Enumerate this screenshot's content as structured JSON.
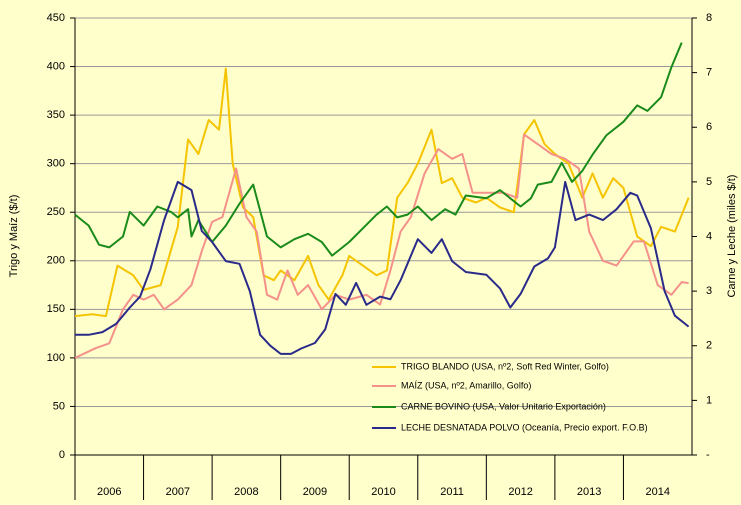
{
  "chart_data": {
    "type": "line",
    "ylabel": "Trigo y Maíz ($/t)",
    "y2label": "Carne y Leche (miles $/t)",
    "xlim": [
      2006,
      2015
    ],
    "xticks": [
      {
        "value": 2006.5,
        "label": "2006"
      },
      {
        "value": 2007.5,
        "label": "2007"
      },
      {
        "value": 2008.5,
        "label": "2008"
      },
      {
        "value": 2009.5,
        "label": "2009"
      },
      {
        "value": 2010.5,
        "label": "2010"
      },
      {
        "value": 2011.5,
        "label": "2011"
      },
      {
        "value": 2012.5,
        "label": "2012"
      },
      {
        "value": 2013.5,
        "label": "2013"
      },
      {
        "value": 2014.5,
        "label": "2014"
      }
    ],
    "ylim": [
      0,
      450
    ],
    "yticks": [
      0,
      50,
      100,
      150,
      200,
      250,
      300,
      350,
      400,
      450
    ],
    "y2lim": [
      0,
      8
    ],
    "y2ticks": [
      {
        "value": 0,
        "label": "-"
      },
      1,
      2,
      3,
      4,
      5,
      6,
      7,
      8
    ],
    "grid": true,
    "legend": "lower right",
    "series": [
      {
        "name": "TRIGO BLANDO (USA, nº2, Soft Red Winter, Golfo)",
        "color": "#f5c400",
        "x": [
          2006.0,
          2006.25,
          2006.45,
          2006.62,
          2006.85,
          2007.0,
          2007.25,
          2007.5,
          2007.65,
          2007.8,
          2007.95,
          2008.1,
          2008.2,
          2008.3,
          2008.45,
          2008.6,
          2008.75,
          2008.9,
          2009.0,
          2009.2,
          2009.4,
          2009.55,
          2009.7,
          2009.9,
          2010.0,
          2010.2,
          2010.4,
          2010.55,
          2010.7,
          2010.85,
          2011.0,
          2011.2,
          2011.35,
          2011.5,
          2011.65,
          2011.85,
          2012.0,
          2012.2,
          2012.4,
          2012.55,
          2012.7,
          2012.85,
          2013.0,
          2013.2,
          2013.4,
          2013.55,
          2013.7,
          2013.85,
          2014.0,
          2014.2,
          2014.4,
          2014.55,
          2014.75,
          2014.95
        ],
        "values": [
          143,
          145,
          143,
          195,
          185,
          170,
          175,
          235,
          325,
          310,
          345,
          335,
          398,
          300,
          255,
          245,
          185,
          180,
          190,
          180,
          205,
          175,
          160,
          185,
          205,
          195,
          185,
          190,
          265,
          280,
          300,
          335,
          280,
          285,
          265,
          260,
          265,
          255,
          250,
          330,
          345,
          320,
          310,
          300,
          265,
          290,
          265,
          285,
          275,
          225,
          215,
          235,
          230,
          265
        ]
      },
      {
        "name": "MAÍZ (USA, nº2, Amarillo, Golfo)",
        "color": "#f4918a",
        "x": [
          2006.0,
          2006.3,
          2006.5,
          2006.7,
          2006.85,
          2007.0,
          2007.15,
          2007.3,
          2007.5,
          2007.7,
          2007.85,
          2008.0,
          2008.15,
          2008.35,
          2008.5,
          2008.65,
          2008.8,
          2008.95,
          2009.1,
          2009.25,
          2009.4,
          2009.6,
          2009.8,
          2010.0,
          2010.25,
          2010.45,
          2010.6,
          2010.75,
          2010.9,
          2011.1,
          2011.3,
          2011.5,
          2011.65,
          2011.8,
          2012.0,
          2012.25,
          2012.45,
          2012.55,
          2012.75,
          2012.95,
          2013.15,
          2013.35,
          2013.5,
          2013.7,
          2013.9,
          2014.15,
          2014.3,
          2014.5,
          2014.7,
          2014.85,
          2014.95
        ],
        "values": [
          100,
          110,
          115,
          150,
          165,
          160,
          165,
          150,
          160,
          175,
          210,
          240,
          245,
          295,
          245,
          230,
          165,
          160,
          190,
          165,
          175,
          150,
          165,
          160,
          165,
          155,
          190,
          230,
          245,
          290,
          315,
          305,
          310,
          270,
          270,
          270,
          265,
          330,
          320,
          310,
          305,
          295,
          230,
          200,
          195,
          220,
          220,
          175,
          165,
          178,
          177
        ]
      },
      {
        "name": "CARNE BOVINO (USA, Valor Unitario Exportación)",
        "color": "#1a8a1a",
        "axis": "y2",
        "x": [
          2006.0,
          2006.2,
          2006.35,
          2006.5,
          2006.7,
          2006.8,
          2007.0,
          2007.2,
          2007.4,
          2007.5,
          2007.65,
          2007.7,
          2007.8,
          2008.0,
          2008.2,
          2008.4,
          2008.6,
          2008.8,
          2009.0,
          2009.2,
          2009.4,
          2009.6,
          2009.75,
          2010.0,
          2010.2,
          2010.4,
          2010.55,
          2010.7,
          2010.85,
          2011.0,
          2011.2,
          2011.4,
          2011.55,
          2011.7,
          2012.0,
          2012.2,
          2012.35,
          2012.5,
          2012.65,
          2012.75,
          2012.95,
          2013.1,
          2013.25,
          2013.4,
          2013.55,
          2013.75,
          2014.0,
          2014.2,
          2014.35,
          2014.55,
          2014.7,
          2014.85
        ],
        "values": [
          4.4,
          4.2,
          3.85,
          3.8,
          4.0,
          4.45,
          4.2,
          4.55,
          4.45,
          4.35,
          4.5,
          4.0,
          4.3,
          3.9,
          4.2,
          4.6,
          4.95,
          4.0,
          3.8,
          3.95,
          4.05,
          3.9,
          3.65,
          3.9,
          4.15,
          4.4,
          4.55,
          4.35,
          4.4,
          4.55,
          4.3,
          4.5,
          4.4,
          4.75,
          4.7,
          4.85,
          4.7,
          4.55,
          4.7,
          4.95,
          5.0,
          5.35,
          5.0,
          5.2,
          5.5,
          5.85,
          6.1,
          6.4,
          6.3,
          6.55,
          7.1,
          7.55
        ]
      },
      {
        "name": "LECHE DESNATADA POLVO (Oceanía, Precio export. F.O.B)",
        "color": "#2a2a8a",
        "axis": "y2",
        "x": [
          2006.0,
          2006.2,
          2006.4,
          2006.6,
          2006.8,
          2006.95,
          2007.1,
          2007.3,
          2007.5,
          2007.7,
          2007.85,
          2008.0,
          2008.2,
          2008.4,
          2008.55,
          2008.7,
          2008.85,
          2009.0,
          2009.15,
          2009.3,
          2009.5,
          2009.65,
          2009.8,
          2009.95,
          2010.1,
          2010.25,
          2010.45,
          2010.6,
          2010.75,
          2011.0,
          2011.2,
          2011.35,
          2011.5,
          2011.7,
          2012.0,
          2012.2,
          2012.35,
          2012.5,
          2012.7,
          2012.9,
          2013.0,
          2013.15,
          2013.3,
          2013.5,
          2013.7,
          2013.9,
          2014.1,
          2014.2,
          2014.4,
          2014.6,
          2014.75,
          2014.95
        ],
        "values": [
          2.2,
          2.2,
          2.25,
          2.4,
          2.7,
          2.9,
          3.4,
          4.3,
          5.0,
          4.85,
          4.1,
          3.9,
          3.55,
          3.5,
          3.0,
          2.2,
          2.0,
          1.85,
          1.85,
          1.95,
          2.05,
          2.3,
          2.95,
          2.75,
          3.15,
          2.75,
          2.9,
          2.85,
          3.2,
          3.95,
          3.7,
          3.95,
          3.55,
          3.35,
          3.3,
          3.05,
          2.7,
          2.95,
          3.45,
          3.6,
          3.8,
          5.0,
          4.3,
          4.4,
          4.3,
          4.5,
          4.8,
          4.75,
          4.15,
          3.0,
          2.55,
          2.35
        ]
      }
    ]
  }
}
